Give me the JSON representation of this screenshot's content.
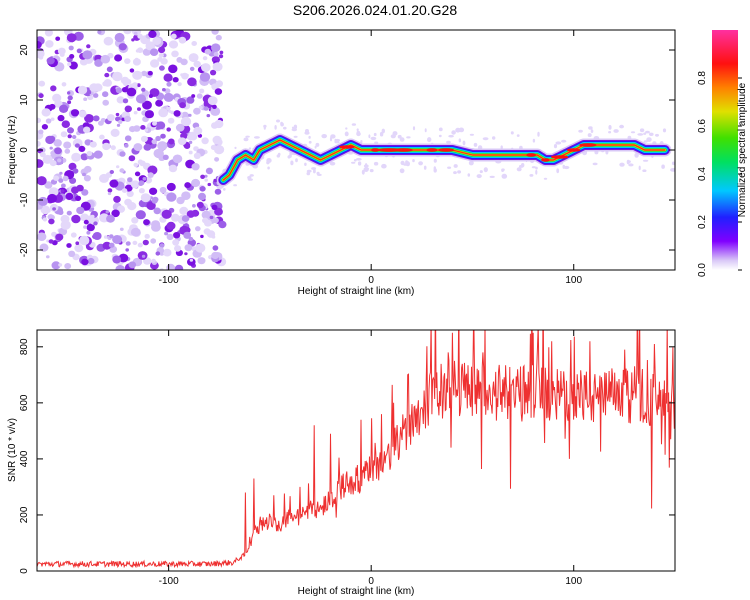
{
  "title": "S206.2026.024.01.20.G28",
  "chart_data": [
    {
      "type": "heatmap",
      "xlabel": "Height of straight line (km)",
      "ylabel": "Frequency (Hz)",
      "xlim": [
        -165,
        150
      ],
      "ylim": [
        -24,
        24
      ],
      "xticks": [
        -100,
        0,
        100
      ],
      "yticks": [
        -20,
        -10,
        0,
        10,
        20
      ],
      "colorbar": {
        "label": "Normalized spectral amplitude",
        "range": [
          0,
          1
        ],
        "ticks": [
          "0.0",
          "0.2",
          "0.4",
          "0.6",
          "0.8"
        ]
      },
      "noise_region_x": [
        -165,
        -73
      ],
      "ridge": {
        "x": [
          -73,
          -70,
          -66,
          -62,
          -58,
          -55,
          -50,
          -45,
          -40,
          -35,
          -30,
          -25,
          -20,
          -15,
          -10,
          -5,
          0,
          10,
          20,
          30,
          40,
          50,
          60,
          70,
          78,
          82,
          86,
          90,
          95,
          100,
          105,
          110,
          115,
          120,
          125,
          130,
          135,
          140,
          145
        ],
        "y": [
          -6,
          -5,
          -2,
          -1,
          -2,
          0,
          1,
          2,
          1,
          0,
          -1,
          -2,
          -1,
          0,
          1,
          0,
          0,
          0,
          0,
          0,
          0,
          -1,
          -1,
          -1,
          -1,
          -1,
          -2,
          -2,
          -1,
          0,
          1,
          1,
          1,
          1,
          1,
          1,
          0,
          0,
          0
        ]
      }
    },
    {
      "type": "line",
      "xlabel": "Height of straight line (km)",
      "ylabel": "SNR (10 * v/v)",
      "xlim": [
        -165,
        150
      ],
      "ylim": [
        0,
        860
      ],
      "xticks": [
        -100,
        0,
        100
      ],
      "yticks": [
        0,
        200,
        400,
        600,
        800
      ],
      "color": "#ee3030",
      "trend": {
        "x": [
          -165,
          -120,
          -80,
          -68,
          -62,
          -58,
          -50,
          -45,
          -40,
          -35,
          -30,
          -25,
          -20,
          -15,
          -10,
          -5,
          0,
          5,
          10,
          15,
          20,
          25,
          30,
          35,
          40,
          50,
          60,
          70,
          80,
          90,
          100,
          110,
          120,
          130,
          140,
          145,
          150
        ],
        "y": [
          25,
          25,
          25,
          30,
          60,
          150,
          180,
          160,
          200,
          190,
          230,
          220,
          260,
          300,
          320,
          330,
          360,
          390,
          420,
          480,
          540,
          580,
          630,
          640,
          660,
          650,
          640,
          630,
          640,
          620,
          640,
          610,
          630,
          620,
          610,
          600,
          580
        ]
      },
      "peaks": {
        "x": [
          -62,
          -58,
          -48,
          -35,
          -28,
          -20,
          -5,
          5,
          18,
          38,
          40,
          55,
          80,
          82,
          98,
          108,
          125,
          140,
          148
        ],
        "y": [
          280,
          330,
          270,
          300,
          520,
          490,
          540,
          560,
          700,
          780,
          850,
          780,
          850,
          800,
          400,
          820,
          790,
          810,
          470
        ]
      }
    }
  ]
}
